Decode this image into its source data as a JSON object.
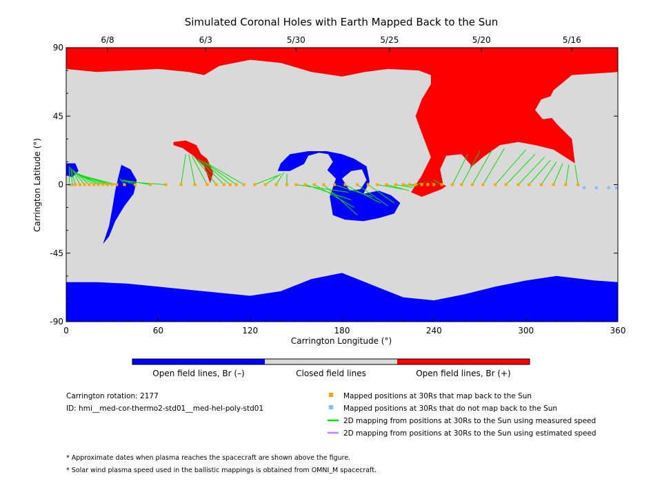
{
  "colors": {
    "open_negative": "#0000ff",
    "closed": "#d9d9d9",
    "open_positive": "#ff0000",
    "mapped_back": "#ffa500",
    "not_mapped_back": "#7ec0ee",
    "measured_speed_line": "#00dd00",
    "estimated_speed_line": "#c080ff"
  },
  "chart_data": {
    "type": "heatmap",
    "title": "Simulated Coronal Holes with Earth Mapped Back to the Sun",
    "xlabel": "Carrington Longitude (°)",
    "ylabel": "Carrington Latitude (°)",
    "xlim": [
      0,
      360
    ],
    "ylim": [
      -90,
      90
    ],
    "x_ticks": [
      "0",
      "60",
      "120",
      "180",
      "240",
      "300",
      "360"
    ],
    "y_ticks": [
      "90",
      "45",
      "0",
      "-45",
      "-90"
    ],
    "top_axis": {
      "date_labels": [
        {
          "longitude": 27,
          "label": "6/8"
        },
        {
          "longitude": 91,
          "label": "6/3"
        },
        {
          "longitude": 150,
          "label": "5/30"
        },
        {
          "longitude": 211,
          "label": "5/25"
        },
        {
          "longitude": 271,
          "label": "5/20"
        },
        {
          "longitude": 330,
          "label": "5/16"
        }
      ]
    },
    "colorbar": {
      "labels": [
        "Open field lines, Br (–)",
        "Closed field lines",
        "Open field lines, Br (+)"
      ]
    },
    "regions": [
      {
        "type": "open_positive",
        "name": "north polar cap",
        "boundary": [
          [
            0,
            90
          ],
          [
            360,
            90
          ],
          [
            360,
            74
          ],
          [
            330,
            72
          ],
          [
            318,
            62
          ],
          [
            312,
            50
          ],
          [
            320,
            40
          ],
          [
            330,
            30
          ],
          [
            332,
            14
          ],
          [
            318,
            23
          ],
          [
            306,
            26
          ],
          [
            295,
            28
          ],
          [
            283,
            26
          ],
          [
            272,
            18
          ],
          [
            260,
            8
          ],
          [
            245,
            -3
          ],
          [
            232,
            -8
          ],
          [
            225,
            -5
          ],
          [
            232,
            6
          ],
          [
            238,
            18
          ],
          [
            232,
            34
          ],
          [
            228,
            45
          ],
          [
            232,
            56
          ],
          [
            238,
            66
          ],
          [
            238,
            72
          ],
          [
            230,
            75
          ],
          [
            210,
            76
          ],
          [
            195,
            74
          ],
          [
            180,
            71
          ],
          [
            160,
            74
          ],
          [
            140,
            80
          ],
          [
            120,
            82
          ],
          [
            100,
            78
          ],
          [
            90,
            72
          ],
          [
            80,
            74
          ],
          [
            60,
            76
          ],
          [
            40,
            75
          ],
          [
            20,
            74
          ],
          [
            0,
            76
          ]
        ]
      },
      {
        "type": "open_positive",
        "name": "mid-latitude patch",
        "boundary": [
          [
            70,
            28
          ],
          [
            78,
            29
          ],
          [
            85,
            26
          ],
          [
            88,
            20
          ],
          [
            92,
            17
          ],
          [
            96,
            8
          ],
          [
            94,
            1
          ],
          [
            90,
            12
          ],
          [
            83,
            19
          ],
          [
            76,
            24
          ],
          [
            70,
            26
          ]
        ]
      },
      {
        "type": "open_negative",
        "name": "south polar cap",
        "boundary": [
          [
            0,
            -90
          ],
          [
            360,
            -90
          ],
          [
            360,
            -64
          ],
          [
            345,
            -63
          ],
          [
            320,
            -60
          ],
          [
            300,
            -63
          ],
          [
            280,
            -67
          ],
          [
            260,
            -72
          ],
          [
            240,
            -76
          ],
          [
            220,
            -74
          ],
          [
            200,
            -66
          ],
          [
            180,
            -58
          ],
          [
            160,
            -62
          ],
          [
            140,
            -70
          ],
          [
            120,
            -73
          ],
          [
            100,
            -71
          ],
          [
            80,
            -69
          ],
          [
            60,
            -67
          ],
          [
            40,
            -65
          ],
          [
            20,
            -64
          ],
          [
            0,
            -64
          ]
        ]
      },
      {
        "type": "open_negative",
        "name": "low-latitude hole 1",
        "boundary": [
          [
            36,
            13
          ],
          [
            42,
            10
          ],
          [
            46,
            3
          ],
          [
            44,
            -6
          ],
          [
            38,
            -14
          ],
          [
            32,
            -24
          ],
          [
            28,
            -34
          ],
          [
            24,
            -39
          ],
          [
            28,
            -27
          ],
          [
            30,
            -16
          ],
          [
            32,
            -4
          ],
          [
            34,
            5
          ]
        ]
      },
      {
        "type": "open_negative",
        "name": "low-latitude hole 2",
        "boundary": [
          [
            140,
            14
          ],
          [
            146,
            20
          ],
          [
            158,
            22
          ],
          [
            170,
            22
          ],
          [
            180,
            20
          ],
          [
            188,
            17
          ],
          [
            196,
            12
          ],
          [
            198,
            2
          ],
          [
            194,
            -6
          ],
          [
            204,
            -4
          ],
          [
            212,
            -7
          ],
          [
            218,
            -12
          ],
          [
            214,
            -19
          ],
          [
            204,
            -22
          ],
          [
            194,
            -24
          ],
          [
            182,
            -23
          ],
          [
            174,
            -20
          ],
          [
            172,
            -8
          ],
          [
            176,
            4
          ],
          [
            168,
            12
          ],
          [
            156,
            14
          ],
          [
            146,
            9
          ],
          [
            138,
            9
          ]
        ]
      },
      {
        "type": "open_negative",
        "name": "western hole",
        "boundary": [
          [
            0,
            14
          ],
          [
            6,
            14
          ],
          [
            8,
            9
          ],
          [
            4,
            5
          ],
          [
            0,
            6
          ]
        ]
      }
    ],
    "closed_islands": [
      {
        "boundary": [
          [
            155,
            13
          ],
          [
            158,
            19
          ],
          [
            165,
            21
          ],
          [
            171,
            20
          ],
          [
            174,
            15
          ],
          [
            170,
            9
          ],
          [
            162,
            8
          ]
        ]
      },
      {
        "boundary": [
          [
            180,
            4
          ],
          [
            186,
            9
          ],
          [
            193,
            10
          ],
          [
            196,
            3
          ],
          [
            192,
            -3
          ],
          [
            185,
            -4
          ]
        ]
      },
      {
        "boundary": [
          [
            244,
            10
          ],
          [
            248,
            19
          ],
          [
            258,
            20
          ],
          [
            264,
            13
          ],
          [
            262,
            3
          ],
          [
            254,
            -3
          ],
          [
            246,
            0
          ]
        ]
      },
      {
        "boundary": [
          [
            306,
            49
          ],
          [
            310,
            56
          ],
          [
            316,
            58
          ],
          [
            321,
            52
          ],
          [
            318,
            44
          ],
          [
            311,
            43
          ]
        ]
      }
    ],
    "series": [
      {
        "name": "Mapped positions at 30Rs that map back to the Sun",
        "type": "scatter",
        "x": [
          2,
          4,
          6,
          9,
          12,
          15,
          18,
          21,
          24,
          27,
          30,
          33,
          38,
          45,
          55,
          65,
          75,
          84,
          92,
          98,
          103,
          107,
          111,
          116,
          123,
          130,
          137,
          144,
          150,
          156,
          162,
          168,
          175,
          182,
          190,
          197,
          203,
          209,
          215,
          220,
          224,
          228,
          232,
          236,
          240,
          245,
          252,
          258,
          265,
          272,
          280,
          287,
          295,
          302,
          310,
          318,
          326,
          334
        ],
        "y": [
          0,
          0,
          0,
          0,
          0,
          0,
          0,
          0,
          0,
          0,
          0,
          0,
          0,
          0,
          0,
          0,
          0,
          0,
          0,
          0,
          0,
          0,
          0,
          0,
          0,
          0,
          0,
          0,
          0,
          0,
          0,
          0,
          0,
          0,
          0,
          0,
          0,
          0,
          0,
          0,
          0,
          0,
          0,
          0,
          0,
          0,
          0,
          0,
          0,
          0,
          0,
          0,
          0,
          0,
          0,
          0,
          0,
          0
        ]
      },
      {
        "name": "Mapped positions at 30Rs that do not map back to the Sun",
        "type": "scatter",
        "x": [
          3,
          338,
          346,
          354,
          360
        ],
        "y": [
          0,
          -2,
          -2,
          -2,
          -2
        ]
      },
      {
        "name": "2D mapping from positions at 30Rs to the Sun using measured speed",
        "type": "segments",
        "x_from": [
          2,
          4,
          6,
          9,
          12,
          15,
          18,
          21,
          24,
          27,
          30,
          33,
          38,
          45,
          55,
          65,
          75,
          84,
          92,
          98,
          103,
          107,
          111,
          116,
          123,
          130,
          137,
          144,
          150,
          156,
          162,
          168,
          175,
          182,
          190,
          197,
          203,
          209,
          215,
          220,
          224,
          228,
          232,
          236,
          240,
          245,
          252,
          258,
          265,
          272,
          280,
          287,
          295,
          302,
          310,
          318,
          326,
          334
        ],
        "y_from": [
          0,
          0,
          0,
          0,
          0,
          0,
          0,
          0,
          0,
          0,
          0,
          0,
          0,
          0,
          0,
          0,
          0,
          0,
          0,
          0,
          0,
          0,
          0,
          0,
          0,
          0,
          0,
          0,
          0,
          0,
          0,
          0,
          0,
          0,
          0,
          0,
          0,
          0,
          0,
          0,
          0,
          0,
          0,
          0,
          0,
          0,
          0,
          0,
          0,
          0,
          0,
          0,
          0,
          0,
          0,
          0,
          0,
          0
        ],
        "x_to": [
          2,
          3,
          3,
          4,
          4,
          5,
          6,
          6,
          7,
          8,
          9,
          10,
          35,
          36,
          37,
          38,
          78,
          80,
          82,
          84,
          86,
          88,
          90,
          92,
          138,
          140,
          142,
          144,
          184,
          186,
          188,
          190,
          200,
          205,
          210,
          214,
          220,
          224,
          226,
          228,
          230,
          232,
          234,
          236,
          238,
          240,
          262,
          270,
          278,
          286,
          300,
          306,
          312,
          316,
          320,
          324,
          328,
          332
        ],
        "y_to": [
          12,
          11,
          11,
          10,
          10,
          9,
          8,
          8,
          7,
          7,
          6,
          6,
          4,
          3,
          3,
          2,
          20,
          20,
          19,
          18,
          17,
          16,
          15,
          14,
          6,
          7,
          8,
          7,
          -5,
          -10,
          -15,
          -20,
          -8,
          -12,
          -14,
          -12,
          -3,
          -4,
          -2,
          -1,
          0,
          1,
          2,
          2,
          2,
          3,
          20,
          22,
          23,
          24,
          23,
          20,
          18,
          16,
          15,
          14,
          13,
          13
        ]
      },
      {
        "name": "2D mapping from positions at 30Rs to the Sun using estimated speed",
        "type": "segments",
        "x_from": [],
        "y_from": [],
        "x_to": [],
        "y_to": []
      }
    ]
  },
  "info": {
    "rotation_label": "Carrington rotation: 2177",
    "id_label": "ID: hmi__med-cor-thermo2-std01__med-hel-poly-std01"
  },
  "legend": [
    {
      "kind": "square",
      "color_key": "mapped_back",
      "label": "Mapped positions at 30Rs that map back to the Sun"
    },
    {
      "kind": "square",
      "color_key": "not_mapped_back",
      "label": "Mapped positions at 30Rs that do not map back to the Sun"
    },
    {
      "kind": "line",
      "color_key": "measured_speed_line",
      "label": "2D mapping from positions at 30Rs to the Sun using measured speed"
    },
    {
      "kind": "line",
      "color_key": "estimated_speed_line",
      "label": "2D mapping from positions at 30Rs to the Sun using estimated speed"
    }
  ],
  "notes": [
    "* Approximate dates when plasma reaches the spacecraft are shown above the figure.",
    "* Solar wind plasma speed used in the ballistic mappings is obtained from OMNI_M spacecraft."
  ]
}
